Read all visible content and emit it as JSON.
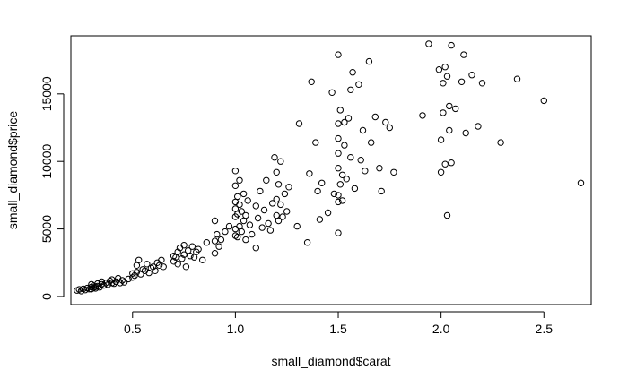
{
  "chart_data": {
    "type": "scatter",
    "title": "",
    "xlabel": "small_diamond$carat",
    "ylabel": "small_diamond$price",
    "xlim": [
      0.2,
      2.73
    ],
    "ylim": [
      -600,
      19300
    ],
    "xticks": [
      0.5,
      1.0,
      1.5,
      2.0,
      2.5
    ],
    "xtick_labels": [
      "0.5",
      "1.0",
      "1.5",
      "2.0",
      "2.5"
    ],
    "yticks": [
      0,
      5000,
      10000,
      15000
    ],
    "ytick_labels": [
      "0",
      "5000",
      "10000",
      "15000"
    ],
    "grid": false,
    "legend": "none",
    "marker": "open-circle",
    "color": "#000000",
    "points": [
      [
        0.23,
        450
      ],
      [
        0.24,
        520
      ],
      [
        0.25,
        400
      ],
      [
        0.26,
        560
      ],
      [
        0.27,
        480
      ],
      [
        0.28,
        620
      ],
      [
        0.29,
        550
      ],
      [
        0.3,
        700
      ],
      [
        0.3,
        540
      ],
      [
        0.3,
        900
      ],
      [
        0.31,
        650
      ],
      [
        0.31,
        800
      ],
      [
        0.32,
        720
      ],
      [
        0.32,
        600
      ],
      [
        0.33,
        760
      ],
      [
        0.33,
        950
      ],
      [
        0.34,
        680
      ],
      [
        0.35,
        900
      ],
      [
        0.35,
        1100
      ],
      [
        0.36,
        820
      ],
      [
        0.37,
        1000
      ],
      [
        0.38,
        880
      ],
      [
        0.39,
        1150
      ],
      [
        0.4,
        1000
      ],
      [
        0.4,
        1250
      ],
      [
        0.41,
        950
      ],
      [
        0.42,
        1100
      ],
      [
        0.43,
        1350
      ],
      [
        0.44,
        1000
      ],
      [
        0.45,
        1200
      ],
      [
        0.46,
        1050
      ],
      [
        0.48,
        1300
      ],
      [
        0.5,
        1400
      ],
      [
        0.5,
        1700
      ],
      [
        0.51,
        1550
      ],
      [
        0.52,
        1800
      ],
      [
        0.52,
        2300
      ],
      [
        0.53,
        2700
      ],
      [
        0.54,
        1650
      ],
      [
        0.55,
        2000
      ],
      [
        0.56,
        1900
      ],
      [
        0.57,
        2400
      ],
      [
        0.58,
        1750
      ],
      [
        0.59,
        2100
      ],
      [
        0.6,
        2200
      ],
      [
        0.61,
        1900
      ],
      [
        0.62,
        2500
      ],
      [
        0.63,
        2300
      ],
      [
        0.64,
        2700
      ],
      [
        0.65,
        2200
      ],
      [
        0.7,
        2600
      ],
      [
        0.7,
        3000
      ],
      [
        0.71,
        2900
      ],
      [
        0.72,
        3300
      ],
      [
        0.72,
        2400
      ],
      [
        0.73,
        3600
      ],
      [
        0.74,
        2800
      ],
      [
        0.75,
        3100
      ],
      [
        0.75,
        3800
      ],
      [
        0.76,
        2200
      ],
      [
        0.77,
        3400
      ],
      [
        0.78,
        3000
      ],
      [
        0.79,
        3700
      ],
      [
        0.8,
        2900
      ],
      [
        0.81,
        3300
      ],
      [
        0.82,
        3500
      ],
      [
        0.84,
        2700
      ],
      [
        0.86,
        4000
      ],
      [
        0.9,
        3200
      ],
      [
        0.9,
        4100
      ],
      [
        0.9,
        5600
      ],
      [
        0.91,
        4600
      ],
      [
        0.92,
        3700
      ],
      [
        0.93,
        4200
      ],
      [
        0.95,
        4800
      ],
      [
        0.97,
        5200
      ],
      [
        1.0,
        4500
      ],
      [
        1.0,
        5000
      ],
      [
        1.0,
        5900
      ],
      [
        1.0,
        6500
      ],
      [
        1.0,
        7000
      ],
      [
        1.0,
        8200
      ],
      [
        1.0,
        9300
      ],
      [
        1.01,
        4400
      ],
      [
        1.01,
        6100
      ],
      [
        1.01,
        7400
      ],
      [
        1.02,
        5200
      ],
      [
        1.02,
        6800
      ],
      [
        1.02,
        8600
      ],
      [
        1.03,
        4800
      ],
      [
        1.03,
        6300
      ],
      [
        1.04,
        7600
      ],
      [
        1.04,
        5600
      ],
      [
        1.05,
        4200
      ],
      [
        1.05,
        6000
      ],
      [
        1.06,
        7100
      ],
      [
        1.07,
        5300
      ],
      [
        1.08,
        4600
      ],
      [
        1.1,
        6700
      ],
      [
        1.1,
        3600
      ],
      [
        1.11,
        5800
      ],
      [
        1.12,
        7800
      ],
      [
        1.13,
        5100
      ],
      [
        1.14,
        6400
      ],
      [
        1.15,
        8600
      ],
      [
        1.16,
        5400
      ],
      [
        1.17,
        4900
      ],
      [
        1.18,
        6900
      ],
      [
        1.19,
        10300
      ],
      [
        1.2,
        6000
      ],
      [
        1.2,
        7200
      ],
      [
        1.2,
        9200
      ],
      [
        1.21,
        5600
      ],
      [
        1.21,
        8300
      ],
      [
        1.22,
        6800
      ],
      [
        1.22,
        10000
      ],
      [
        1.23,
        5900
      ],
      [
        1.24,
        7600
      ],
      [
        1.25,
        6300
      ],
      [
        1.26,
        8100
      ],
      [
        1.3,
        5200
      ],
      [
        1.31,
        12800
      ],
      [
        1.35,
        4000
      ],
      [
        1.36,
        9100
      ],
      [
        1.37,
        15900
      ],
      [
        1.39,
        11400
      ],
      [
        1.4,
        7800
      ],
      [
        1.41,
        5700
      ],
      [
        1.42,
        8400
      ],
      [
        1.45,
        6200
      ],
      [
        1.47,
        15100
      ],
      [
        1.48,
        7600
      ],
      [
        1.5,
        4700
      ],
      [
        1.5,
        7000
      ],
      [
        1.5,
        7500
      ],
      [
        1.5,
        9500
      ],
      [
        1.5,
        10600
      ],
      [
        1.5,
        11700
      ],
      [
        1.5,
        12800
      ],
      [
        1.5,
        17900
      ],
      [
        1.51,
        8300
      ],
      [
        1.51,
        13800
      ],
      [
        1.52,
        9000
      ],
      [
        1.52,
        7100
      ],
      [
        1.53,
        11200
      ],
      [
        1.53,
        12900
      ],
      [
        1.54,
        8700
      ],
      [
        1.55,
        13200
      ],
      [
        1.56,
        15300
      ],
      [
        1.57,
        16600
      ],
      [
        1.58,
        8000
      ],
      [
        1.6,
        15700
      ],
      [
        1.61,
        10100
      ],
      [
        1.62,
        12300
      ],
      [
        1.63,
        9300
      ],
      [
        1.65,
        17400
      ],
      [
        1.68,
        13300
      ],
      [
        1.7,
        9500
      ],
      [
        1.71,
        7800
      ],
      [
        1.73,
        12900
      ],
      [
        1.75,
        12500
      ],
      [
        1.91,
        13400
      ],
      [
        1.94,
        18700
      ],
      [
        2.0,
        9200
      ],
      [
        2.0,
        11600
      ],
      [
        2.01,
        13600
      ],
      [
        2.01,
        15800
      ],
      [
        2.02,
        9800
      ],
      [
        2.02,
        17000
      ],
      [
        2.03,
        16300
      ],
      [
        2.03,
        6000
      ],
      [
        2.04,
        14100
      ],
      [
        2.05,
        9900
      ],
      [
        2.05,
        18600
      ],
      [
        2.07,
        13900
      ],
      [
        2.1,
        15900
      ],
      [
        2.11,
        17900
      ],
      [
        2.12,
        12100
      ],
      [
        2.15,
        16400
      ],
      [
        2.18,
        12600
      ],
      [
        2.2,
        15800
      ],
      [
        2.29,
        11400
      ],
      [
        2.37,
        16100
      ],
      [
        2.5,
        14500
      ],
      [
        2.68,
        8400
      ],
      [
        1.99,
        16800
      ],
      [
        2.04,
        12300
      ],
      [
        1.77,
        9200
      ],
      [
        1.66,
        11400
      ],
      [
        1.56,
        10300
      ]
    ]
  }
}
